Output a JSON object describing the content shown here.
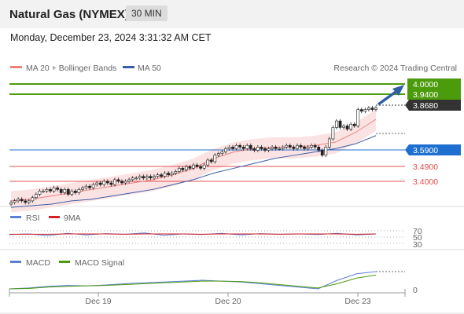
{
  "header": {
    "title": "Natural Gas (NYMEX)",
    "timeframe": "30 MIN"
  },
  "datetime": "Monday, December 23, 2024 3:31:32 AM CET",
  "chart_data": [
    {
      "type": "line",
      "panel": "price",
      "legend": [
        {
          "name": "MA 20 + Bollinger Bands",
          "color": "#f08080"
        },
        {
          "name": "MA 50",
          "color": "#3a5fa8"
        }
      ],
      "watermark": "Research © 2024 Trading Central",
      "ylim": [
        3.28,
        4.06
      ],
      "candles_close": [
        3.29,
        3.3,
        3.31,
        3.3,
        3.29,
        3.3,
        3.32,
        3.34,
        3.36,
        3.36,
        3.37,
        3.36,
        3.38,
        3.37,
        3.35,
        3.37,
        3.34,
        3.36,
        3.35,
        3.37,
        3.38,
        3.39,
        3.38,
        3.4,
        3.41,
        3.4,
        3.42,
        3.41,
        3.4,
        3.43,
        3.42,
        3.41,
        3.42,
        3.43,
        3.44,
        3.44,
        3.45,
        3.44,
        3.45,
        3.44,
        3.45,
        3.46,
        3.45,
        3.47,
        3.46,
        3.47,
        3.48,
        3.5,
        3.49,
        3.51,
        3.5,
        3.52,
        3.51,
        3.5,
        3.52,
        3.55,
        3.54,
        3.58,
        3.59,
        3.6,
        3.62,
        3.63,
        3.62,
        3.64,
        3.63,
        3.62,
        3.64,
        3.62,
        3.61,
        3.63,
        3.62,
        3.61,
        3.62,
        3.63,
        3.62,
        3.62,
        3.63,
        3.64,
        3.63,
        3.62,
        3.64,
        3.63,
        3.62,
        3.63,
        3.64,
        3.63,
        3.61,
        3.58,
        3.63,
        3.68,
        3.75,
        3.79,
        3.75,
        3.76,
        3.74,
        3.77,
        3.76,
        3.86,
        3.85,
        3.86,
        3.87,
        3.86,
        3.87
      ],
      "series": [
        {
          "name": "MA 20 + Bollinger Bands",
          "values": [
            3.3,
            3.31,
            3.33,
            3.35,
            3.37,
            3.39,
            3.41,
            3.43,
            3.46,
            3.5,
            3.56,
            3.6,
            3.62,
            3.63,
            3.63,
            3.64,
            3.66,
            3.72,
            3.8
          ]
        },
        {
          "name": "MA 50",
          "values": [
            3.26,
            3.27,
            3.28,
            3.3,
            3.31,
            3.33,
            3.35,
            3.37,
            3.4,
            3.43,
            3.47,
            3.5,
            3.53,
            3.56,
            3.58,
            3.6,
            3.62,
            3.65,
            3.7
          ]
        }
      ],
      "levels": [
        {
          "label": "4.0000",
          "kind": "resistance",
          "color": "#4c9b0c"
        },
        {
          "label": "3.9400",
          "kind": "resistance",
          "color": "#4c9b0c"
        },
        {
          "label": "3.8680",
          "kind": "last",
          "color": "#333333"
        },
        {
          "label": "3.5900",
          "kind": "pivot",
          "color": "#1f6fd0"
        },
        {
          "label": "3.4900",
          "kind": "support",
          "color": "#e05050"
        },
        {
          "label": "3.4000",
          "kind": "support",
          "color": "#e05050"
        }
      ]
    },
    {
      "type": "line",
      "panel": "rsi",
      "legend": [
        {
          "name": "RSI",
          "color": "#5b7fd6"
        },
        {
          "name": "9MA",
          "color": "#d42020"
        }
      ],
      "yticks": [
        "70",
        "50",
        "30"
      ],
      "series": [
        {
          "name": "RSI",
          "values": [
            58,
            60,
            55,
            62,
            57,
            61,
            59,
            63,
            56,
            60,
            58,
            62,
            57,
            61,
            59,
            60,
            58,
            62,
            57,
            60
          ]
        },
        {
          "name": "9MA",
          "values": [
            59,
            59,
            59,
            60,
            60,
            60,
            59,
            60,
            60,
            60,
            59,
            60,
            60,
            60,
            59,
            60,
            60,
            60,
            59,
            60
          ]
        }
      ]
    },
    {
      "type": "line",
      "panel": "macd",
      "legend": [
        {
          "name": "MACD",
          "color": "#5b7fd6"
        },
        {
          "name": "MACD Signal",
          "color": "#4c9b0c"
        }
      ],
      "yticks": [
        "0"
      ],
      "series": [
        {
          "name": "MACD",
          "values": [
            0.0,
            0.002,
            0.006,
            0.008,
            0.007,
            0.009,
            0.012,
            0.014,
            0.016,
            0.018,
            0.02,
            0.018,
            0.016,
            0.012,
            0.008,
            0.004,
            0.0,
            0.02,
            0.035,
            0.04
          ]
        },
        {
          "name": "MACD Signal",
          "values": [
            0.0,
            0.001,
            0.004,
            0.006,
            0.007,
            0.008,
            0.01,
            0.012,
            0.014,
            0.016,
            0.018,
            0.018,
            0.017,
            0.014,
            0.01,
            0.006,
            0.002,
            0.012,
            0.025,
            0.032
          ]
        }
      ]
    }
  ],
  "x_axis": {
    "ticks": [
      "Dec 19",
      "Dec 20",
      "Dec 23"
    ]
  }
}
